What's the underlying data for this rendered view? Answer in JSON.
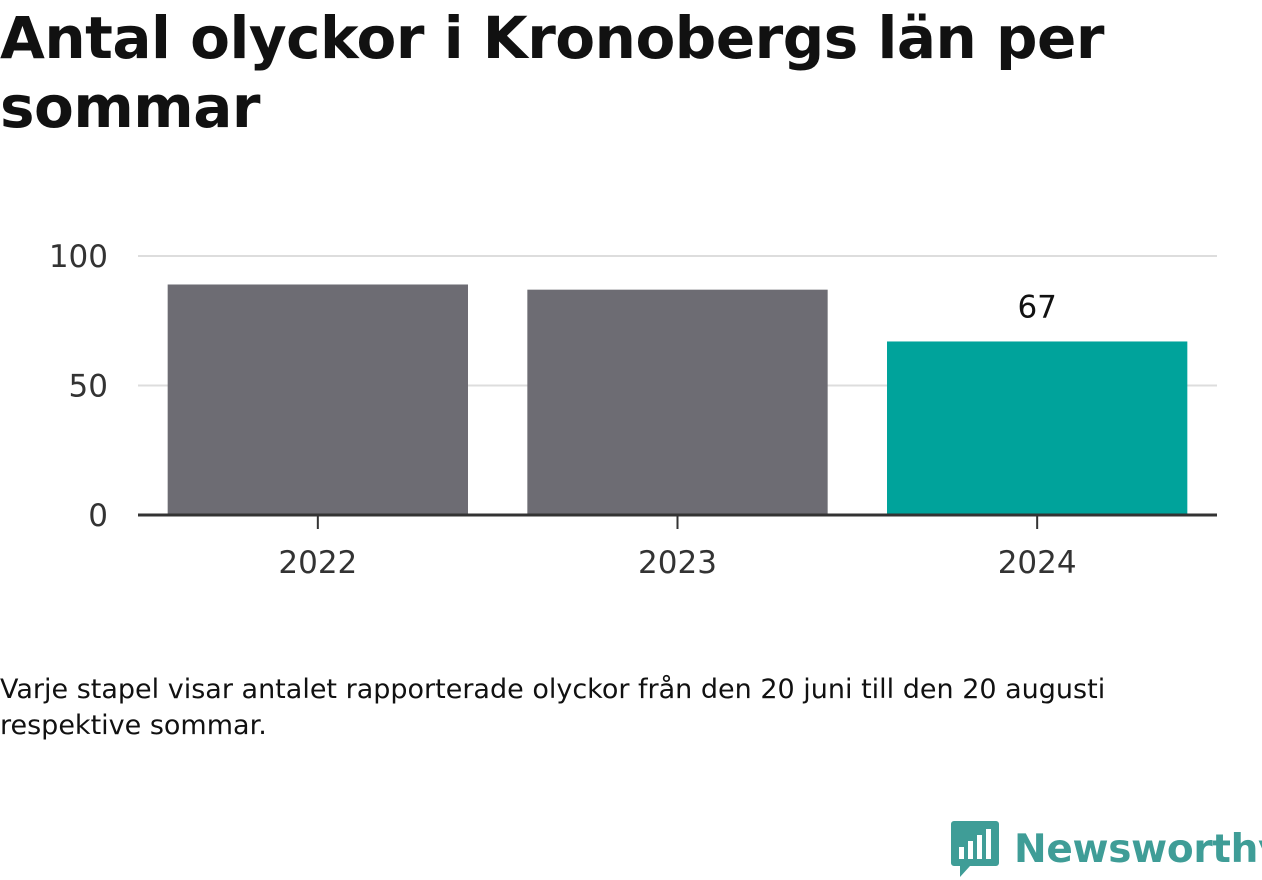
{
  "chart_data": {
    "type": "bar",
    "title": "Antal olyckor i Kronobergs län per sommar",
    "categories": [
      "2022",
      "2023",
      "2024"
    ],
    "values": [
      89,
      87,
      67
    ],
    "ylim": [
      0,
      100
    ],
    "yticks": [
      0,
      50,
      100
    ],
    "data_labels": [
      "",
      "",
      "67"
    ],
    "xlabel": "",
    "ylabel": "",
    "grid": true,
    "legend": "none",
    "colors": [
      "#6d6c73",
      "#6d6c73",
      "#00a39b"
    ]
  },
  "note": "Varje stapel visar antalet rapporterade olyckor från den 20 juni till den 20 augusti respektive sommar.",
  "brand": {
    "name": "Newsworthy",
    "logo_icon": "newsworthy-logo-icon",
    "color": "#3f9d97"
  },
  "colors": {
    "grid": "#dddddd",
    "axis": "#333333"
  }
}
